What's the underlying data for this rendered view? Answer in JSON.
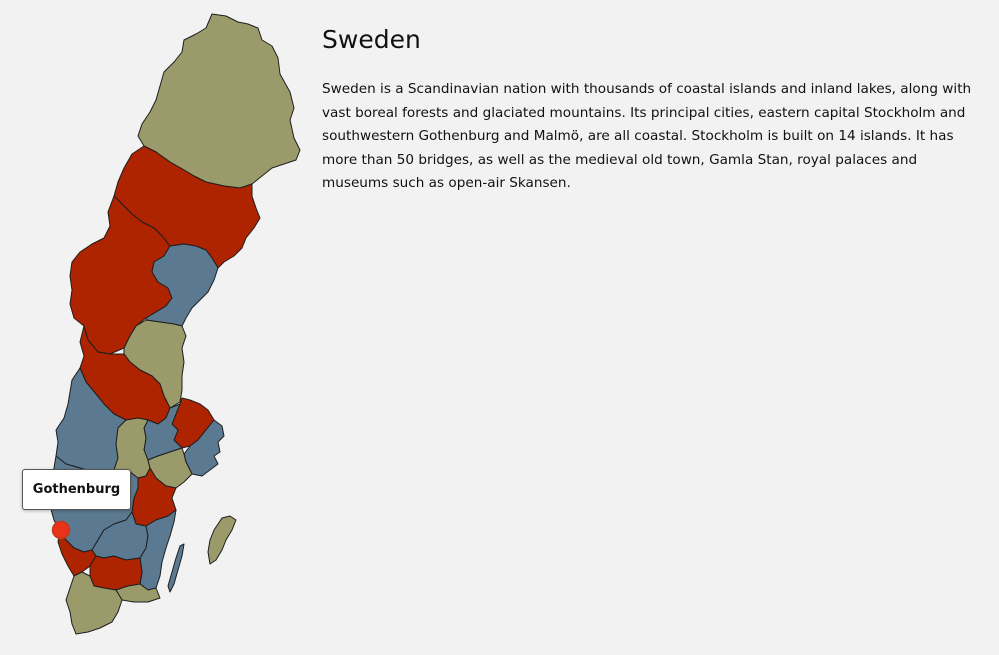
{
  "country": {
    "title": "Sweden",
    "description": "Sweden is a Scandinavian nation with thousands of coastal islands and inland lakes, along with vast boreal forests and glaciated mountains. Its principal cities, eastern capital Stockholm and southwestern Gothenburg and Malmö, are all coastal. Stockholm is built on 14 islands. It has more than 50 bridges, as well as the medieval old town, Gamla Stan, royal palaces and museums such as open-air Skansen."
  },
  "map": {
    "colors": {
      "olive": "#9a9a6a",
      "red": "#ae2300",
      "blue": "#5b7a91",
      "marker": "#e8321a",
      "background": "#f2f2f2"
    },
    "tooltip": {
      "label": "Gothenburg"
    },
    "highlighted_city": "Gothenburg"
  }
}
